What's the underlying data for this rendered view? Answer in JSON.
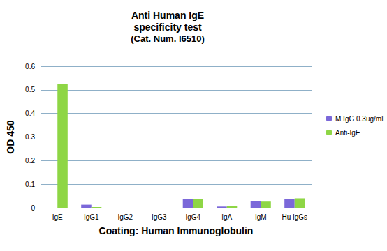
{
  "chart_data": {
    "type": "bar",
    "title": "Anti Human IgE\nspecificity test",
    "subtitle": "(Cat. Num. I6510)",
    "x_label": "Coating: Human Immunoglobulin",
    "y_label": "OD 450",
    "categories": [
      "IgE",
      "IgG1",
      "IgG2",
      "IgG3",
      "IgG4",
      "IgA",
      "IgM",
      "Hu IgGs"
    ],
    "series": [
      {
        "name": "M IgG 0.3ug/ml",
        "color": "#7b68d9",
        "values": [
          0,
          0.013,
          0,
          0,
          0.037,
          0.005,
          0.027,
          0.037
        ]
      },
      {
        "name": "Anti-IgE",
        "color": "#8ed645",
        "values": [
          0.525,
          0.003,
          0,
          0,
          0.036,
          0.006,
          0.026,
          0.04
        ]
      }
    ],
    "ylim": [
      0,
      0.6
    ],
    "yticks": [
      0,
      0.1,
      0.2,
      0.3,
      0.4,
      0.5,
      0.6
    ],
    "grid": true,
    "legend": "right"
  }
}
